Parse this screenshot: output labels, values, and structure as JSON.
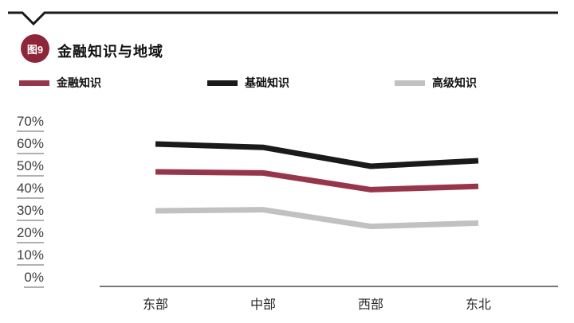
{
  "header": {
    "figure_badge": "图9",
    "badge_color": "#8e2639",
    "title": "金融知识与地域"
  },
  "chart_data": {
    "type": "line",
    "title": "金融知识与地域",
    "categories": [
      "东部",
      "中部",
      "西部",
      "东北"
    ],
    "series": [
      {
        "name": "金融知识",
        "color": "#97364a",
        "values": [
          47.5,
          47,
          39.5,
          41
        ]
      },
      {
        "name": "基础知识",
        "color": "#1a1a1a",
        "values": [
          60,
          58.5,
          50,
          52.5
        ]
      },
      {
        "name": "高级知识",
        "color": "#c1c1c1",
        "values": [
          30,
          30.5,
          23,
          24.5
        ]
      }
    ],
    "xlabel": "",
    "ylabel": "",
    "ylim": [
      0,
      70
    ],
    "yticks": [
      "70%",
      "60%",
      "50%",
      "40%",
      "30%",
      "20%",
      "10%",
      "0%"
    ],
    "grid": false,
    "legend_position": "top",
    "axis_color": "#777777"
  }
}
